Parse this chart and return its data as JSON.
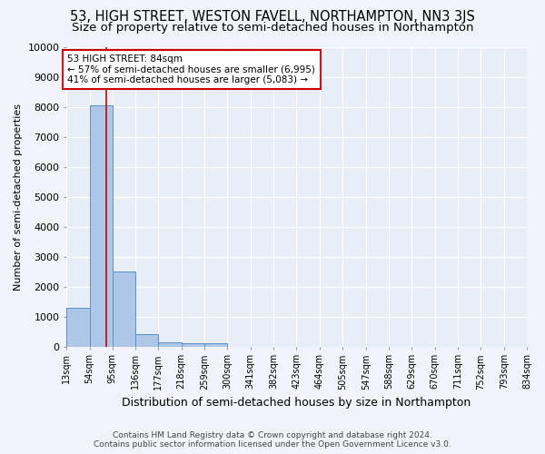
{
  "title": "53, HIGH STREET, WESTON FAVELL, NORTHAMPTON, NN3 3JS",
  "subtitle": "Size of property relative to semi-detached houses in Northampton",
  "xlabel": "Distribution of semi-detached houses by size in Northampton",
  "ylabel": "Number of semi-detached properties",
  "footer_line1": "Contains HM Land Registry data © Crown copyright and database right 2024.",
  "footer_line2": "Contains public sector information licensed under the Open Government Licence v3.0.",
  "bin_edges": [
    13,
    54,
    95,
    136,
    177,
    218,
    259,
    300,
    341,
    382,
    423,
    464,
    505,
    547,
    588,
    629,
    670,
    711,
    752,
    793,
    834
  ],
  "bin_labels": [
    "13sqm",
    "54sqm",
    "95sqm",
    "136sqm",
    "177sqm",
    "218sqm",
    "259sqm",
    "300sqm",
    "341sqm",
    "382sqm",
    "423sqm",
    "464sqm",
    "505sqm",
    "547sqm",
    "588sqm",
    "629sqm",
    "670sqm",
    "711sqm",
    "752sqm",
    "793sqm",
    "834sqm"
  ],
  "bar_heights": [
    1300,
    8050,
    2500,
    400,
    150,
    100,
    100,
    0,
    0,
    0,
    0,
    0,
    0,
    0,
    0,
    0,
    0,
    0,
    0,
    0
  ],
  "bar_color": "#aec6e8",
  "bar_edge_color": "#5b8fc9",
  "property_size": 84,
  "red_line_color": "#cc0000",
  "ylim": [
    0,
    10000
  ],
  "yticks": [
    0,
    1000,
    2000,
    3000,
    4000,
    5000,
    6000,
    7000,
    8000,
    9000,
    10000
  ],
  "annotation_line1": "53 HIGH STREET: 84sqm",
  "annotation_line2": "← 57% of semi-detached houses are smaller (6,995)",
  "annotation_line3": "41% of semi-detached houses are larger (5,083) →",
  "annotation_box_color": "#ffffff",
  "annotation_box_edge": "#cc0000",
  "bg_color": "#f0f4fa",
  "plot_bg_color": "#e8eef7",
  "grid_color": "#ffffff",
  "title_fontsize": 10.5,
  "subtitle_fontsize": 9.5
}
